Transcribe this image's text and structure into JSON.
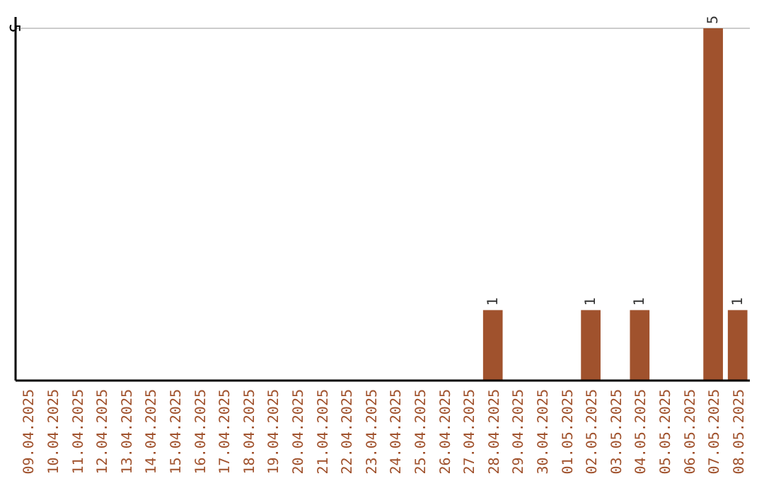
{
  "chart_data": {
    "type": "bar",
    "categories": [
      "09.04.2025",
      "10.04.2025",
      "11.04.2025",
      "12.04.2025",
      "13.04.2025",
      "14.04.2025",
      "15.04.2025",
      "16.04.2025",
      "17.04.2025",
      "18.04.2025",
      "19.04.2025",
      "20.04.2025",
      "21.04.2025",
      "22.04.2025",
      "23.04.2025",
      "24.04.2025",
      "25.04.2025",
      "26.04.2025",
      "27.04.2025",
      "28.04.2025",
      "29.04.2025",
      "30.04.2025",
      "01.05.2025",
      "02.05.2025",
      "03.05.2025",
      "04.05.2025",
      "05.05.2025",
      "06.05.2025",
      "07.05.2025",
      "08.05.2025"
    ],
    "values": [
      null,
      null,
      null,
      null,
      null,
      null,
      null,
      null,
      null,
      null,
      null,
      null,
      null,
      null,
      null,
      null,
      null,
      null,
      null,
      1,
      null,
      null,
      null,
      1,
      null,
      1,
      null,
      null,
      5,
      1
    ],
    "value_labels": [
      null,
      null,
      null,
      null,
      null,
      null,
      null,
      null,
      null,
      null,
      null,
      null,
      null,
      null,
      null,
      null,
      null,
      null,
      null,
      "1",
      null,
      null,
      null,
      "1",
      null,
      "1",
      null,
      null,
      "5",
      "1"
    ],
    "color": "#a0522d",
    "ylim": [
      0,
      5
    ],
    "annotations": [
      "5"
    ]
  }
}
